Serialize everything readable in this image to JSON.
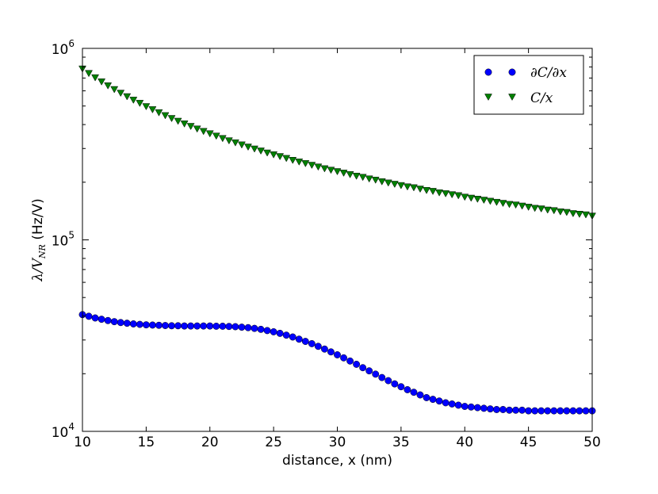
{
  "chart_data": {
    "type": "scatter",
    "xlabel": "distance, x (nm)",
    "ylabel_math": "λ/V",
    "ylabel_subscript": "NR",
    "ylabel_units": "(Hz/V)",
    "xlim": [
      10,
      50
    ],
    "ylim": [
      10000,
      1000000
    ],
    "yscale": "log",
    "x_ticks": [
      "10",
      "15",
      "20",
      "25",
      "30",
      "35",
      "40",
      "45",
      "50"
    ],
    "y_tick_base": "10",
    "y_tick_exponents": [
      "4",
      "5",
      "6"
    ],
    "legend_position": "top-right",
    "grid": false,
    "series": [
      {
        "name": "∂C/∂x",
        "marker": "circle",
        "color": "#0000ff",
        "x": [
          10,
          10.5,
          11,
          11.5,
          12,
          12.5,
          13,
          13.5,
          14,
          14.5,
          15,
          15.5,
          16,
          16.5,
          17,
          17.5,
          18,
          18.5,
          19,
          19.5,
          20,
          20.5,
          21,
          21.5,
          22,
          22.5,
          23,
          23.5,
          24,
          24.5,
          25,
          25.5,
          26,
          26.5,
          27,
          27.5,
          28,
          28.5,
          29,
          29.5,
          30,
          30.5,
          31,
          31.5,
          32,
          32.5,
          33,
          33.5,
          34,
          34.5,
          35,
          35.5,
          36,
          36.5,
          37,
          37.5,
          38,
          38.5,
          39,
          39.5,
          40,
          40.5,
          41,
          41.5,
          42,
          42.5,
          43,
          43.5,
          44,
          44.5,
          45,
          45.5,
          46,
          46.5,
          47,
          47.5,
          48,
          48.5,
          49,
          49.5,
          50
        ],
        "y": [
          40700,
          39900,
          39100,
          38500,
          37900,
          37400,
          37000,
          36700,
          36400,
          36200,
          36000,
          35900,
          35800,
          35700,
          35600,
          35600,
          35500,
          35500,
          35500,
          35500,
          35500,
          35400,
          35400,
          35300,
          35200,
          35000,
          34800,
          34500,
          34100,
          33600,
          33100,
          32500,
          31800,
          31100,
          30300,
          29500,
          28700,
          27800,
          26900,
          26000,
          25100,
          24200,
          23300,
          22400,
          21500,
          20700,
          19900,
          19100,
          18400,
          17700,
          17100,
          16500,
          16000,
          15500,
          15000,
          14700,
          14400,
          14100,
          13900,
          13700,
          13500,
          13400,
          13300,
          13200,
          13100,
          13000,
          13000,
          12900,
          12900,
          12900,
          12800,
          12800,
          12800,
          12800,
          12800,
          12800,
          12800,
          12800,
          12800,
          12800,
          12800
        ]
      },
      {
        "name": "C/x",
        "marker": "triangle-down",
        "color": "#008000",
        "x": [
          10,
          10.5,
          11,
          11.5,
          12,
          12.5,
          13,
          13.5,
          14,
          14.5,
          15,
          15.5,
          16,
          16.5,
          17,
          17.5,
          18,
          18.5,
          19,
          19.5,
          20,
          20.5,
          21,
          21.5,
          22,
          22.5,
          23,
          23.5,
          24,
          24.5,
          25,
          25.5,
          26,
          26.5,
          27,
          27.5,
          28,
          28.5,
          29,
          29.5,
          30,
          30.5,
          31,
          31.5,
          32,
          32.5,
          33,
          33.5,
          34,
          34.5,
          35,
          35.5,
          36,
          36.5,
          37,
          37.5,
          38,
          38.5,
          39,
          39.5,
          40,
          40.5,
          41,
          41.5,
          42,
          42.5,
          43,
          43.5,
          44,
          44.5,
          45,
          45.5,
          46,
          46.5,
          47,
          47.5,
          48,
          48.5,
          49,
          49.5,
          50
        ],
        "y": [
          780000,
          739000,
          702000,
          668000,
          637000,
          609000,
          583000,
          559000,
          536000,
          516000,
          496000,
          478000,
          461000,
          445000,
          430000,
          416000,
          403000,
          391000,
          379000,
          368000,
          358000,
          348000,
          338000,
          329000,
          321000,
          313000,
          305000,
          298000,
          291000,
          284000,
          278000,
          272000,
          266000,
          260000,
          255000,
          250000,
          245000,
          240000,
          235000,
          231000,
          227000,
          223000,
          219000,
          215000,
          212000,
          208000,
          205000,
          201000,
          198000,
          195000,
          192000,
          189000,
          187000,
          184000,
          181000,
          179000,
          176000,
          174000,
          172000,
          170000,
          167000,
          165000,
          163000,
          161000,
          159000,
          157000,
          155000,
          153000,
          152000,
          150000,
          148000,
          146000,
          145000,
          143000,
          142000,
          140000,
          139000,
          137000,
          136000,
          135000,
          133000
        ]
      }
    ]
  }
}
